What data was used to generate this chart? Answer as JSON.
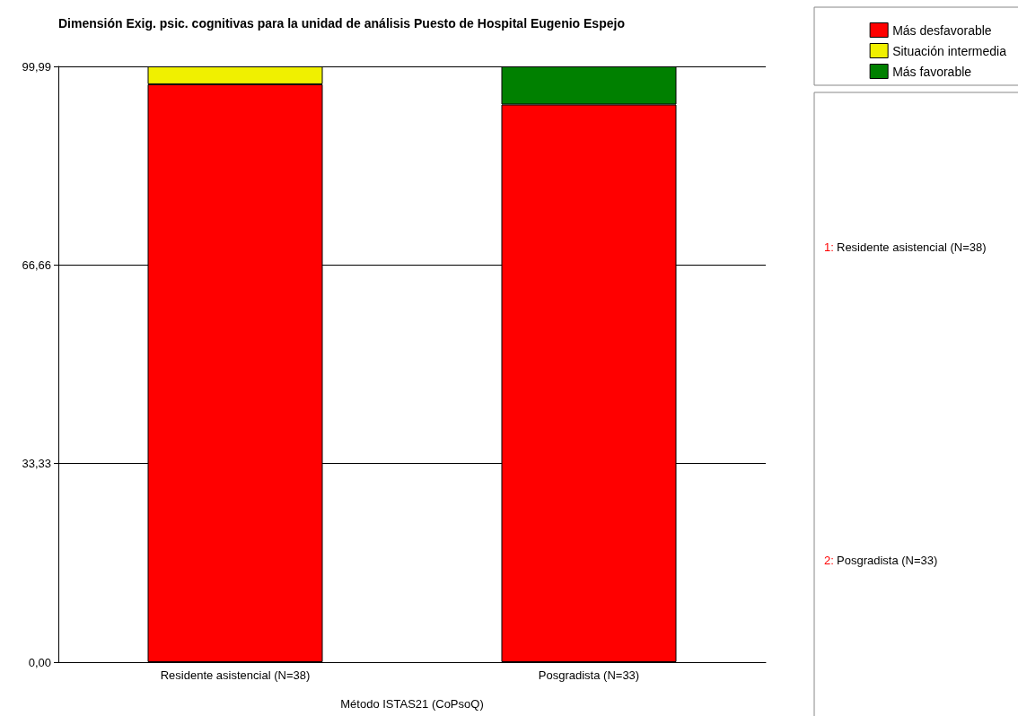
{
  "chart_data": {
    "type": "bar",
    "title": "Dimensión Exig. psic. cognitivas para la unidad de análisis Puesto de Hospital Eugenio Espejo",
    "xlabel": "Método ISTAS21 (CoPsoQ)",
    "categories": [
      "Residente asistencial (N=38)",
      "Posgradista (N=33)"
    ],
    "stacked": true,
    "series": [
      {
        "name": "Más desfavorable",
        "color": "#ff0000",
        "values": [
          97,
          93.6
        ]
      },
      {
        "name": "Situación intermedia",
        "color": "#f0f000",
        "values": [
          3,
          null
        ]
      },
      {
        "name": "Más favorable",
        "color": "#008000",
        "values": [
          null,
          6.4
        ]
      }
    ],
    "ylim": [
      0,
      100
    ],
    "yticks": [
      {
        "value": 0,
        "label": "0,00"
      },
      {
        "value": 33.33,
        "label": "33,33"
      },
      {
        "value": 66.66,
        "label": "66,66"
      },
      {
        "value": 99.99,
        "label": "99,99"
      }
    ],
    "grid": "y",
    "legend": "top right",
    "annotations": [
      "1:",
      "Residente asistencial (N=38)",
      "2:",
      "Posgradista (N=33)"
    ]
  }
}
